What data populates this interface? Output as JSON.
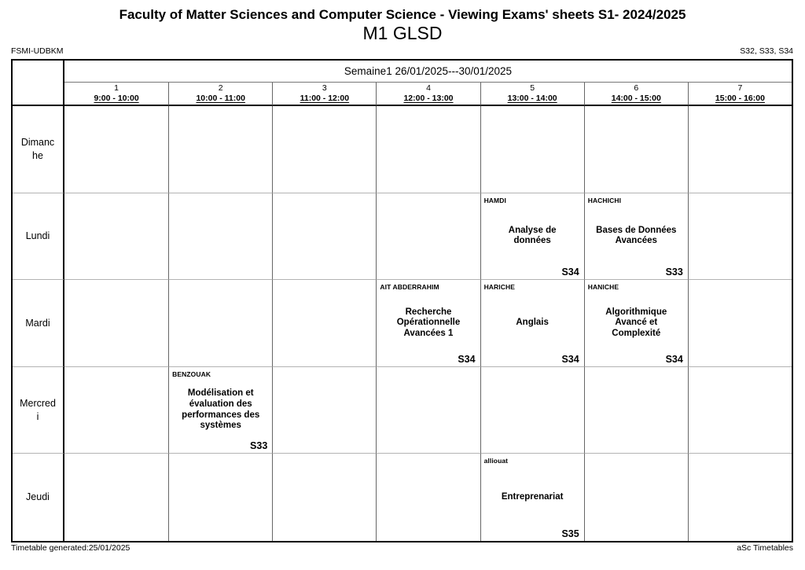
{
  "header": {
    "title": "Faculty of Matter Sciences and Computer Science - Viewing Exams' sheets S1- 2024/2025",
    "subtitle": "M1 GLSD",
    "left_label": "FSMI-UDBKM",
    "right_label": "S32, S33, S34"
  },
  "table": {
    "week_header": "Semaine1 26/01/2025---30/01/2025",
    "periods": [
      {
        "number": "1",
        "time": "9:00 - 10:00"
      },
      {
        "number": "2",
        "time": "10:00 - 11:00"
      },
      {
        "number": "3",
        "time": "11:00 - 12:00"
      },
      {
        "number": "4",
        "time": "12:00 - 13:00"
      },
      {
        "number": "5",
        "time": "13:00 - 14:00"
      },
      {
        "number": "6",
        "time": "14:00 - 15:00"
      },
      {
        "number": "7",
        "time": "15:00 - 16:00"
      }
    ],
    "days": [
      "Dimanche",
      "Lundi",
      "Mardi",
      "Mercredi",
      "Jeudi"
    ],
    "lessons": [
      {
        "day": 1,
        "period": 5,
        "teacher": "HAMDI",
        "subject": "Analyse de données",
        "room": "S34"
      },
      {
        "day": 1,
        "period": 6,
        "teacher": "HACHICHI",
        "subject": "Bases de Données Avancées",
        "room": "S33"
      },
      {
        "day": 2,
        "period": 4,
        "teacher": "AIT ABDERRAHIM",
        "subject": "Recherche Opérationnelle Avancées 1",
        "room": "S34"
      },
      {
        "day": 2,
        "period": 5,
        "teacher": "HARICHE",
        "subject": "Anglais",
        "room": "S34"
      },
      {
        "day": 2,
        "period": 6,
        "teacher": "HANICHE",
        "subject": "Algorithmique Avancé et Complexité",
        "room": "S34"
      },
      {
        "day": 3,
        "period": 2,
        "teacher": "BENZOUAK",
        "subject": "Modélisation et évaluation des performances des systèmes",
        "room": "S33"
      },
      {
        "day": 4,
        "period": 5,
        "teacher": "alliouat",
        "subject": "Entreprenariat",
        "room": "S35"
      }
    ]
  },
  "footer": {
    "left": "Timetable generated:25/01/2025",
    "right": "aSc Timetables"
  }
}
